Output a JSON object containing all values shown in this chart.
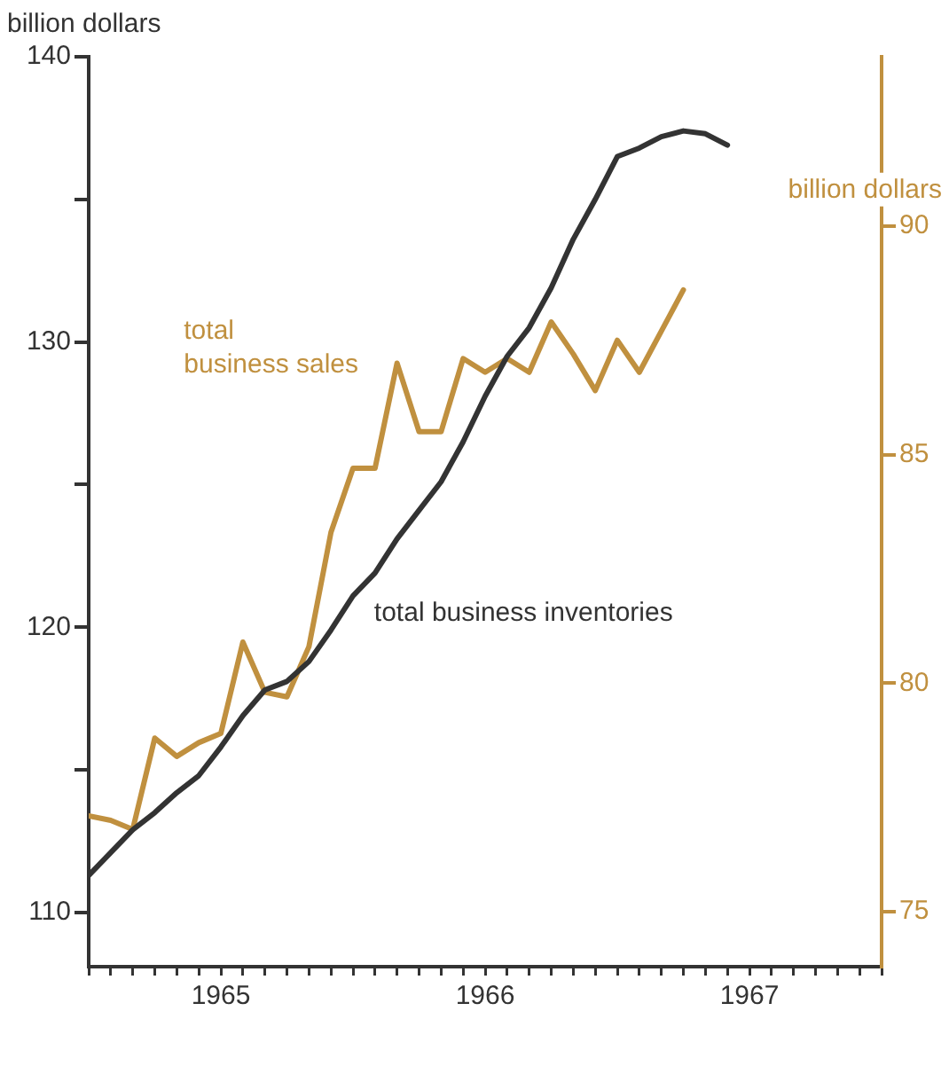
{
  "chart_data": {
    "type": "line",
    "ylabel": "billion dollars",
    "y2label": "billion dollars",
    "x": [
      "1965-01",
      "1965-02",
      "1965-03",
      "1965-04",
      "1965-05",
      "1965-06",
      "1965-07",
      "1965-08",
      "1965-09",
      "1965-10",
      "1965-11",
      "1965-12",
      "1966-01",
      "1966-02",
      "1966-03",
      "1966-04",
      "1966-05",
      "1966-06",
      "1966-07",
      "1966-08",
      "1966-09",
      "1966-10",
      "1966-11",
      "1966-12",
      "1967-01",
      "1967-02",
      "1967-03",
      "1967-04",
      "1967-05",
      "1967-06"
    ],
    "series": [
      {
        "name": "total business inventories",
        "color": "#333333",
        "values": [
          111.3,
          112.1,
          112.9,
          113.5,
          114.2,
          114.8,
          115.8,
          116.9,
          117.8,
          118.1,
          118.8,
          119.9,
          121.1,
          121.9,
          123.1,
          124.1,
          125.1,
          126.5,
          128.1,
          129.5,
          130.5,
          131.9,
          133.6,
          135.0,
          136.5,
          136.8,
          137.2,
          137.4,
          137.3,
          136.9
        ]
      },
      {
        "name": "total business sales",
        "color": "#c0903f",
        "axis": "y2",
        "values": [
          77.1,
          77.0,
          76.8,
          78.8,
          78.4,
          78.7,
          78.9,
          80.9,
          79.8,
          79.7,
          80.8,
          83.3,
          84.7,
          84.7,
          87.0,
          85.5,
          85.5,
          87.1,
          86.8,
          87.1,
          86.8,
          87.9,
          87.2,
          86.4,
          87.5,
          86.8,
          87.7,
          88.6,
          null,
          null
        ]
      }
    ],
    "xlim": [
      "1965-01",
      "1968-01"
    ],
    "xticks": [
      {
        "value": "1965-01",
        "label": null
      },
      {
        "value": "1965-02",
        "label": null
      },
      {
        "value": "1965-03",
        "label": null
      },
      {
        "value": "1965-04",
        "label": null
      },
      {
        "value": "1965-05",
        "label": null
      },
      {
        "value": "1965-06",
        "label": null
      },
      {
        "value": "1965-07",
        "label": "1965"
      },
      {
        "value": "1965-08",
        "label": null
      },
      {
        "value": "1965-09",
        "label": null
      },
      {
        "value": "1965-10",
        "label": null
      },
      {
        "value": "1965-11",
        "label": null
      },
      {
        "value": "1965-12",
        "label": null
      },
      {
        "value": "1966-01",
        "label": null
      },
      {
        "value": "1966-02",
        "label": null
      },
      {
        "value": "1966-03",
        "label": null
      },
      {
        "value": "1966-04",
        "label": null
      },
      {
        "value": "1966-05",
        "label": null
      },
      {
        "value": "1966-06",
        "label": null
      },
      {
        "value": "1966-07",
        "label": "1966"
      },
      {
        "value": "1966-08",
        "label": null
      },
      {
        "value": "1966-09",
        "label": null
      },
      {
        "value": "1966-10",
        "label": null
      },
      {
        "value": "1966-11",
        "label": null
      },
      {
        "value": "1966-12",
        "label": null
      },
      {
        "value": "1967-01",
        "label": null
      },
      {
        "value": "1967-02",
        "label": null
      },
      {
        "value": "1967-03",
        "label": null
      },
      {
        "value": "1967-04",
        "label": null
      },
      {
        "value": "1967-05",
        "label": null
      },
      {
        "value": "1967-06",
        "label": null
      },
      {
        "value": "1967-07",
        "label": "1967"
      },
      {
        "value": "1967-08",
        "label": null
      },
      {
        "value": "1967-09",
        "label": null
      },
      {
        "value": "1967-10",
        "label": null
      },
      {
        "value": "1967-11",
        "label": null
      },
      {
        "value": "1967-12",
        "label": null
      },
      {
        "value": "1968-01",
        "label": null
      }
    ],
    "ylim": [
      108.1,
      140
    ],
    "yticks": [
      110,
      {
        "value": 115,
        "label": null
      },
      120,
      {
        "value": 125,
        "label": null
      },
      130,
      {
        "value": 135,
        "label": null
      },
      140
    ],
    "y2lim": [
      73.8,
      93.7
    ],
    "y2ticks": [
      75,
      80,
      85,
      90
    ],
    "grid": false,
    "legend": false,
    "marker": "none",
    "line_style": "solid"
  }
}
